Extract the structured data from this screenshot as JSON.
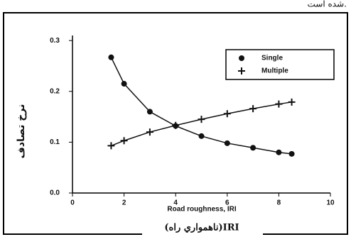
{
  "header_text": "شده است.",
  "chart_data": {
    "type": "line",
    "xlabel": "Road roughness, IRI",
    "xlabel_local": "(ناهمواري راه)IRI",
    "ylabel": "نرخ تصادف",
    "xlim": [
      0,
      10
    ],
    "xticks": [
      0,
      2,
      4,
      6,
      8,
      10
    ],
    "ylim": [
      0,
      0.31
    ],
    "yticks": [
      {
        "value": 0,
        "label": "0.0"
      },
      0.1,
      0.2,
      0.3
    ],
    "legend": "upper right",
    "series": [
      {
        "name": "Single",
        "color": "#111111",
        "marker": "circle",
        "x": [
          1.5,
          2,
          3,
          4,
          5,
          6,
          7,
          8,
          8.5
        ],
        "values": [
          0.267,
          0.215,
          0.16,
          0.132,
          0.112,
          0.098,
          0.089,
          0.08,
          0.077
        ]
      },
      {
        "name": "Multiple",
        "color": "#111111",
        "marker": "plus",
        "x": [
          1.5,
          2,
          3,
          4,
          5,
          6,
          7,
          8,
          8.5
        ],
        "values": [
          0.093,
          0.103,
          0.12,
          0.133,
          0.145,
          0.156,
          0.166,
          0.175,
          0.179
        ]
      }
    ]
  }
}
